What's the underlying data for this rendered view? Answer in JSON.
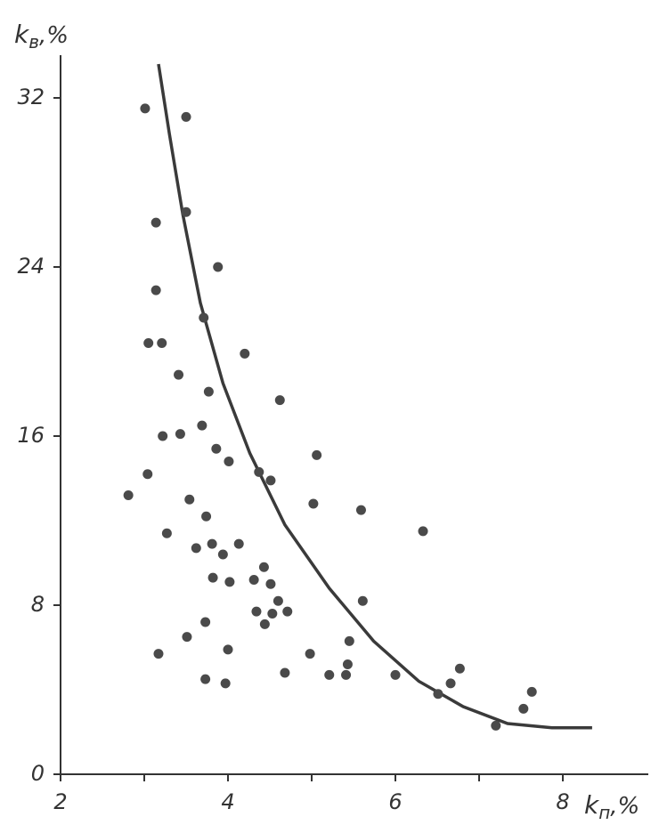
{
  "chart_data": {
    "type": "scatter",
    "ylabel": [
      "k",
      "в",
      ",%"
    ],
    "xlabel": [
      "k",
      "п",
      ",%"
    ],
    "xlim": [
      2,
      9
    ],
    "ylim": [
      0,
      34
    ],
    "xticks": [
      2,
      4,
      6,
      8
    ],
    "xminor_ticks": [
      3,
      5,
      7
    ],
    "yticks": [
      0,
      8,
      16,
      24,
      32
    ],
    "grid": false,
    "color": "#4a4a4a",
    "x": [
      3.01,
      3.5,
      3.14,
      3.5,
      3.88,
      3.14,
      3.71,
      3.05,
      3.21,
      4.2,
      3.41,
      3.77,
      4.62,
      3.69,
      3.22,
      3.43,
      3.86,
      4.01,
      5.06,
      3.04,
      4.37,
      4.51,
      2.81,
      3.54,
      5.02,
      5.59,
      3.74,
      3.27,
      6.33,
      3.81,
      4.13,
      3.62,
      3.94,
      4.43,
      3.82,
      4.31,
      4.02,
      4.51,
      4.6,
      5.61,
      4.34,
      4.53,
      4.71,
      3.73,
      4.44,
      3.51,
      5.45,
      4.0,
      3.17,
      4.98,
      5.43,
      6.77,
      3.73,
      4.68,
      5.21,
      5.41,
      6.0,
      3.97,
      6.66,
      6.51,
      7.63,
      7.53,
      7.2
    ],
    "values": [
      31.5,
      31.1,
      26.1,
      26.6,
      24.0,
      22.9,
      21.6,
      20.4,
      20.4,
      19.9,
      18.9,
      18.1,
      17.7,
      16.5,
      16.0,
      16.1,
      15.4,
      14.8,
      15.1,
      14.2,
      14.3,
      13.9,
      13.2,
      13.0,
      12.8,
      12.5,
      12.2,
      11.4,
      11.5,
      10.9,
      10.9,
      10.7,
      10.4,
      9.8,
      9.3,
      9.2,
      9.1,
      9.0,
      8.2,
      8.2,
      7.7,
      7.6,
      7.7,
      7.2,
      7.1,
      6.5,
      6.3,
      5.9,
      5.7,
      5.7,
      5.2,
      5.0,
      4.5,
      4.8,
      4.7,
      4.7,
      4.7,
      4.3,
      4.3,
      3.8,
      3.9,
      3.1,
      2.3
    ],
    "curve": {
      "color": "#3a3a3a",
      "x": [
        3.17,
        3.3,
        3.46,
        3.67,
        3.94,
        4.26,
        4.68,
        5.21,
        5.74,
        6.28,
        6.81,
        7.34,
        7.87,
        8.35
      ],
      "values": [
        33.6,
        30.3,
        26.5,
        22.3,
        18.5,
        15.2,
        11.8,
        8.8,
        6.3,
        4.4,
        3.2,
        2.4,
        2.2,
        2.2
      ]
    }
  }
}
